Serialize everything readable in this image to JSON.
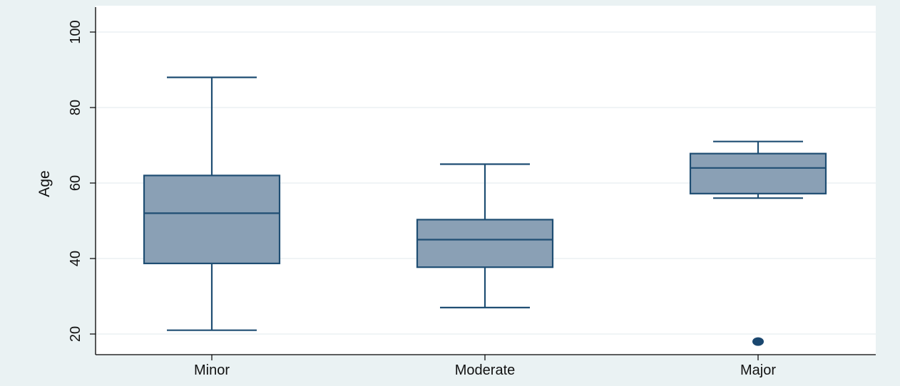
{
  "chart_data": {
    "type": "box",
    "title": "",
    "xlabel": "",
    "ylabel": "Age",
    "ylim": [
      15,
      102
    ],
    "yticks": [
      20,
      40,
      60,
      80,
      100
    ],
    "ytick_labels": [
      "20",
      "40",
      "60",
      "80",
      "100"
    ],
    "grid": true,
    "categories": [
      "Minor",
      "Moderate",
      "Major"
    ],
    "boxes": [
      {
        "category": "Minor",
        "whisker_low": 21,
        "q1": 38.7,
        "median": 52,
        "q3": 62,
        "whisker_high": 88,
        "outliers": []
      },
      {
        "category": "Moderate",
        "whisker_low": 27,
        "q1": 37.7,
        "median": 45,
        "q3": 50.3,
        "whisker_high": 65,
        "outliers": []
      },
      {
        "category": "Major",
        "whisker_low": 56,
        "q1": 57.2,
        "median": 64,
        "q3": 67.8,
        "whisker_high": 71,
        "outliers": [
          18
        ]
      }
    ],
    "colors": {
      "outer_background": "#eaf2f3",
      "plot_background": "#ffffff",
      "grid": "#e6eef0",
      "box_fill": "#8aa0b5",
      "box_stroke": "#1f4e73",
      "outlier": "#1a476f",
      "axis": "#000000"
    }
  }
}
